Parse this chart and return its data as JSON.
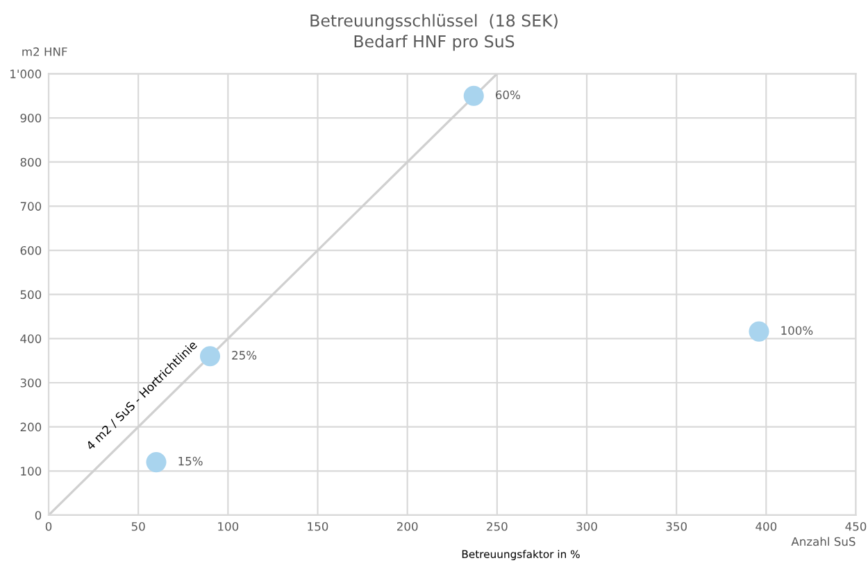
{
  "chart_data": {
    "type": "scatter",
    "title": "Betreuungsschlüssel  (18 SEK)\nBedarf HNF pro SuS",
    "xlabel": "Anzahl SuS",
    "ylabel": "m2 HNF",
    "x": [
      60,
      90,
      237,
      396
    ],
    "series": [
      {
        "color": "#a9d4ee",
        "values": [
          120,
          360,
          950,
          416
        ],
        "marker": "circle"
      },
      {
        "type": "line",
        "name": "4 m2 / SuS - Hortrichtlinie",
        "color": "#d0d0d0",
        "x": [
          0,
          250
        ],
        "values": [
          0,
          1000
        ]
      }
    ],
    "annotations": [
      "Betreuungsfaktor in %",
      {
        "text": "15%",
        "x": 60,
        "y": 120
      },
      {
        "text": "25%",
        "x": 90,
        "y": 360
      },
      {
        "text": "60%",
        "x": 237,
        "y": 950
      },
      {
        "text": "100%",
        "x": 396,
        "y": 416
      }
    ],
    "xlim": [
      0,
      450
    ],
    "xticks": [
      0,
      50,
      100,
      150,
      200,
      250,
      300,
      350,
      400,
      450
    ],
    "ylim": [
      0,
      1000
    ],
    "yticks": [
      0,
      100,
      200,
      300,
      400,
      500,
      600,
      700,
      800,
      900,
      {
        "value": 1000,
        "label": "1'000"
      }
    ],
    "grid": true
  }
}
